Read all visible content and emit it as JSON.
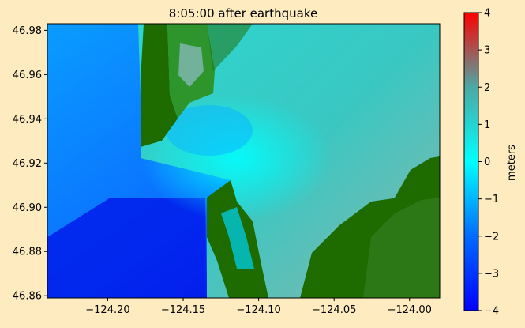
{
  "figure": {
    "background": "#FEEBBF",
    "title": "8:05:00 after earthquake"
  },
  "chart_data": {
    "type": "heatmap",
    "title": "8:05:00 after earthquake",
    "xlabel": "",
    "ylabel": "",
    "x_ticks": [
      -124.2,
      -124.15,
      -124.1,
      -124.05,
      -124.0
    ],
    "x_tick_labels": [
      "−124.20",
      "−124.15",
      "−124.10",
      "−124.05",
      "−124.00"
    ],
    "y_ticks": [
      46.86,
      46.88,
      46.9,
      46.92,
      46.94,
      46.96,
      46.98
    ],
    "y_tick_labels": [
      "46.86",
      "46.88",
      "46.90",
      "46.92",
      "46.94",
      "46.96",
      "46.98"
    ],
    "xlim": [
      -124.24,
      -123.98
    ],
    "ylim": [
      46.859,
      46.983
    ],
    "colorbar": {
      "label": "meters",
      "range": [
        -4,
        4
      ],
      "ticks": [
        -4,
        -3,
        -2,
        -1,
        0,
        1,
        2,
        3,
        4
      ],
      "tick_labels": [
        "−4",
        "−3",
        "−2",
        "−1",
        "0",
        "1",
        "2",
        "3",
        "4"
      ],
      "colors": [
        "#0000FF",
        "#00FFFF",
        "#FF0000"
      ]
    },
    "land_color": "#1E6B00",
    "water_colors": {
      "deep_offshore": "#0010E8",
      "offshore": "#0A7CFF",
      "channel": "#00F6FF",
      "bay": "#33C9C4",
      "shallow_bay": "#7FB7AE"
    }
  }
}
